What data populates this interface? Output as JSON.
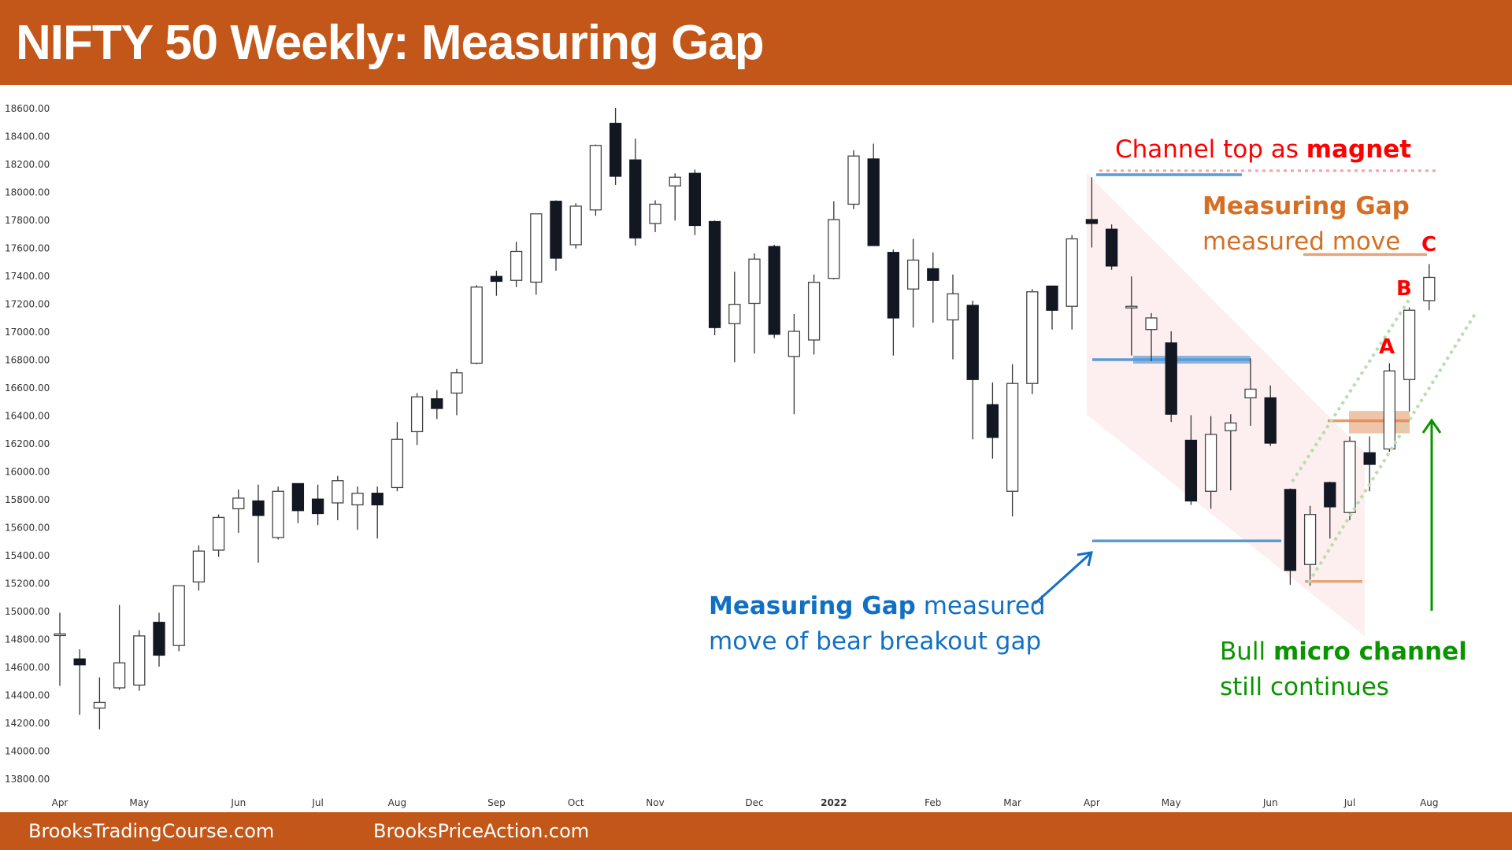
{
  "header": {
    "title": "NIFTY 50 Weekly: Measuring Gap"
  },
  "footer": {
    "link1": "BrooksTradingCourse.com",
    "link2": "BrooksPriceAction.com"
  },
  "colors": {
    "brand": "#c25719",
    "bull_body": "#ffffff",
    "bear_body": "#131722",
    "wick": "#333333",
    "channel_fill": "#fdecec",
    "red_label": "#ff0000",
    "orange_label": "#d66f24",
    "blue_label": "#1270c4",
    "green_label": "#0a9400",
    "blue_line": "#5b9bd5",
    "orange_line": "#e3a57c",
    "green_dots": "#b9ddb0",
    "red_dots": "#f4a3a3"
  },
  "annotations": {
    "channel_top_prefix": "Channel top as ",
    "channel_top_bold": "magnet",
    "mg_title": "Measuring Gap",
    "mg_sub": "measured move",
    "label_a": "A",
    "label_b": "B",
    "label_c": "C",
    "bear_gap_bold": "Measuring Gap",
    "bear_gap_rest1": " measured",
    "bear_gap_line2": "move of bear breakout gap",
    "micro_prefix": "Bull ",
    "micro_bold": "micro channel",
    "micro_line2": "still continues"
  },
  "chart_data": {
    "type": "candlestick",
    "title": "NIFTY 50 Weekly: Measuring Gap",
    "xlabel": "",
    "ylabel": "",
    "ylim": [
      13800,
      18600
    ],
    "y_ticks": [
      "18600.00",
      "18400.00",
      "18200.00",
      "18000.00",
      "17800.00",
      "17600.00",
      "17400.00",
      "17200.00",
      "17000.00",
      "16800.00",
      "16600.00",
      "16400.00",
      "16200.00",
      "16000.00",
      "15800.00",
      "15600.00",
      "15400.00",
      "15200.00",
      "15000.00",
      "14800.00",
      "14600.00",
      "14400.00",
      "14200.00",
      "14000.00",
      "13800.00"
    ],
    "x_ticks": [
      {
        "label": "Apr",
        "index": 0
      },
      {
        "label": "May",
        "index": 4
      },
      {
        "label": "Jun",
        "index": 9
      },
      {
        "label": "Jul",
        "index": 13
      },
      {
        "label": "Aug",
        "index": 17
      },
      {
        "label": "Sep",
        "index": 22
      },
      {
        "label": "Oct",
        "index": 26
      },
      {
        "label": "Nov",
        "index": 30
      },
      {
        "label": "Dec",
        "index": 35
      },
      {
        "label": "2022",
        "index": 39,
        "bold": true
      },
      {
        "label": "Feb",
        "index": 44
      },
      {
        "label": "Mar",
        "index": 48
      },
      {
        "label": "Apr",
        "index": 52
      },
      {
        "label": "May",
        "index": 56
      },
      {
        "label": "Jun",
        "index": 61
      },
      {
        "label": "Jul",
        "index": 65
      },
      {
        "label": "Aug",
        "index": 69
      }
    ],
    "grid": false,
    "legend": null,
    "candles": [
      [
        14834,
        14986,
        14462,
        14834
      ],
      [
        14655,
        14724,
        14255,
        14613
      ],
      [
        14303,
        14523,
        14151,
        14344
      ],
      [
        14448,
        15041,
        14434,
        14627
      ],
      [
        14468,
        14861,
        14427,
        14820
      ],
      [
        14917,
        14986,
        14600,
        14682
      ],
      [
        14751,
        15179,
        14710,
        15179
      ],
      [
        15206,
        15468,
        15144,
        15427
      ],
      [
        15434,
        15689,
        15386,
        15668
      ],
      [
        15730,
        15868,
        15558,
        15806
      ],
      [
        15786,
        15903,
        15344,
        15682
      ],
      [
        15524,
        15889,
        15510,
        15855
      ],
      [
        15910,
        15910,
        15627,
        15717
      ],
      [
        15799,
        15903,
        15613,
        15696
      ],
      [
        15772,
        15965,
        15648,
        15931
      ],
      [
        15758,
        15889,
        15579,
        15841
      ],
      [
        15841,
        15889,
        15517,
        15758
      ],
      [
        15882,
        16351,
        15855,
        16227
      ],
      [
        16282,
        16558,
        16186,
        16531
      ],
      [
        16517,
        16579,
        16372,
        16448
      ],
      [
        16558,
        16731,
        16400,
        16703
      ],
      [
        16772,
        17331,
        16765,
        17317
      ],
      [
        17393,
        17434,
        17255,
        17358
      ],
      [
        17365,
        17641,
        17317,
        17572
      ],
      [
        17352,
        17834,
        17262,
        17841
      ],
      [
        17931,
        17938,
        17434,
        17524
      ],
      [
        17620,
        17917,
        17593,
        17896
      ],
      [
        17869,
        18337,
        17827,
        18331
      ],
      [
        18489,
        18600,
        18048,
        18110
      ],
      [
        18227,
        18379,
        17614,
        17669
      ],
      [
        17772,
        17938,
        17710,
        17910
      ],
      [
        18041,
        18131,
        17793,
        18103
      ],
      [
        18131,
        18158,
        17689,
        17758
      ],
      [
        17786,
        17793,
        16972,
        17027
      ],
      [
        17055,
        17427,
        16779,
        17193
      ],
      [
        17200,
        17558,
        16841,
        17517
      ],
      [
        17607,
        17620,
        16951,
        16979
      ],
      [
        16820,
        17124,
        16407,
        17000
      ],
      [
        16938,
        17407,
        16834,
        17351
      ],
      [
        17379,
        17931,
        17372,
        17800
      ],
      [
        17910,
        18296,
        17875,
        18255
      ],
      [
        18234,
        18344,
        17614,
        17614
      ],
      [
        17565,
        17586,
        16827,
        17096
      ],
      [
        17303,
        17662,
        17027,
        17510
      ],
      [
        17448,
        17565,
        17062,
        17365
      ],
      [
        17082,
        17407,
        16800,
        17269
      ],
      [
        17186,
        17220,
        16227,
        16655
      ],
      [
        16475,
        16634,
        16089,
        16241
      ],
      [
        15855,
        16765,
        15675,
        16627
      ],
      [
        16627,
        17303,
        16551,
        17283
      ],
      [
        17324,
        17324,
        17013,
        17151
      ],
      [
        17179,
        17689,
        17013,
        17662
      ],
      [
        17800,
        18103,
        17600,
        17772
      ],
      [
        17731,
        17765,
        17441,
        17468
      ],
      [
        17179,
        17393,
        16827,
        17179
      ],
      [
        17013,
        17131,
        16786,
        17096
      ],
      [
        16917,
        17000,
        16351,
        16407
      ],
      [
        16220,
        16400,
        15758,
        15786
      ],
      [
        15855,
        16393,
        15730,
        16262
      ],
      [
        16289,
        16407,
        15862,
        16344
      ],
      [
        16524,
        16806,
        16324,
        16586
      ],
      [
        16524,
        16613,
        16179,
        16200
      ],
      [
        15868,
        15875,
        15186,
        15289
      ],
      [
        15331,
        15751,
        15179,
        15689
      ],
      [
        15917,
        15924,
        15517,
        15744
      ],
      [
        15703,
        16248,
        15648,
        16213
      ],
      [
        16131,
        16248,
        15855,
        16048
      ],
      [
        16158,
        16772,
        16138,
        16717
      ],
      [
        16655,
        17172,
        16427,
        17151
      ],
      [
        17220,
        17482,
        17151,
        17386
      ]
    ],
    "candle_format": "[open, high, low, close]",
    "overlays": {
      "channel_top_magnet_level": 18150,
      "measured_move_target_orange": 17550,
      "bear_gap_band_level": 16820,
      "bear_gap_measured_target_blue": 15500,
      "bull_gap_band": [
        16270,
        16430
      ],
      "bull_gap_band_mid": 16360,
      "micro_channel_low_orange": 15210,
      "labels": [
        "A",
        "B",
        "C"
      ]
    }
  }
}
